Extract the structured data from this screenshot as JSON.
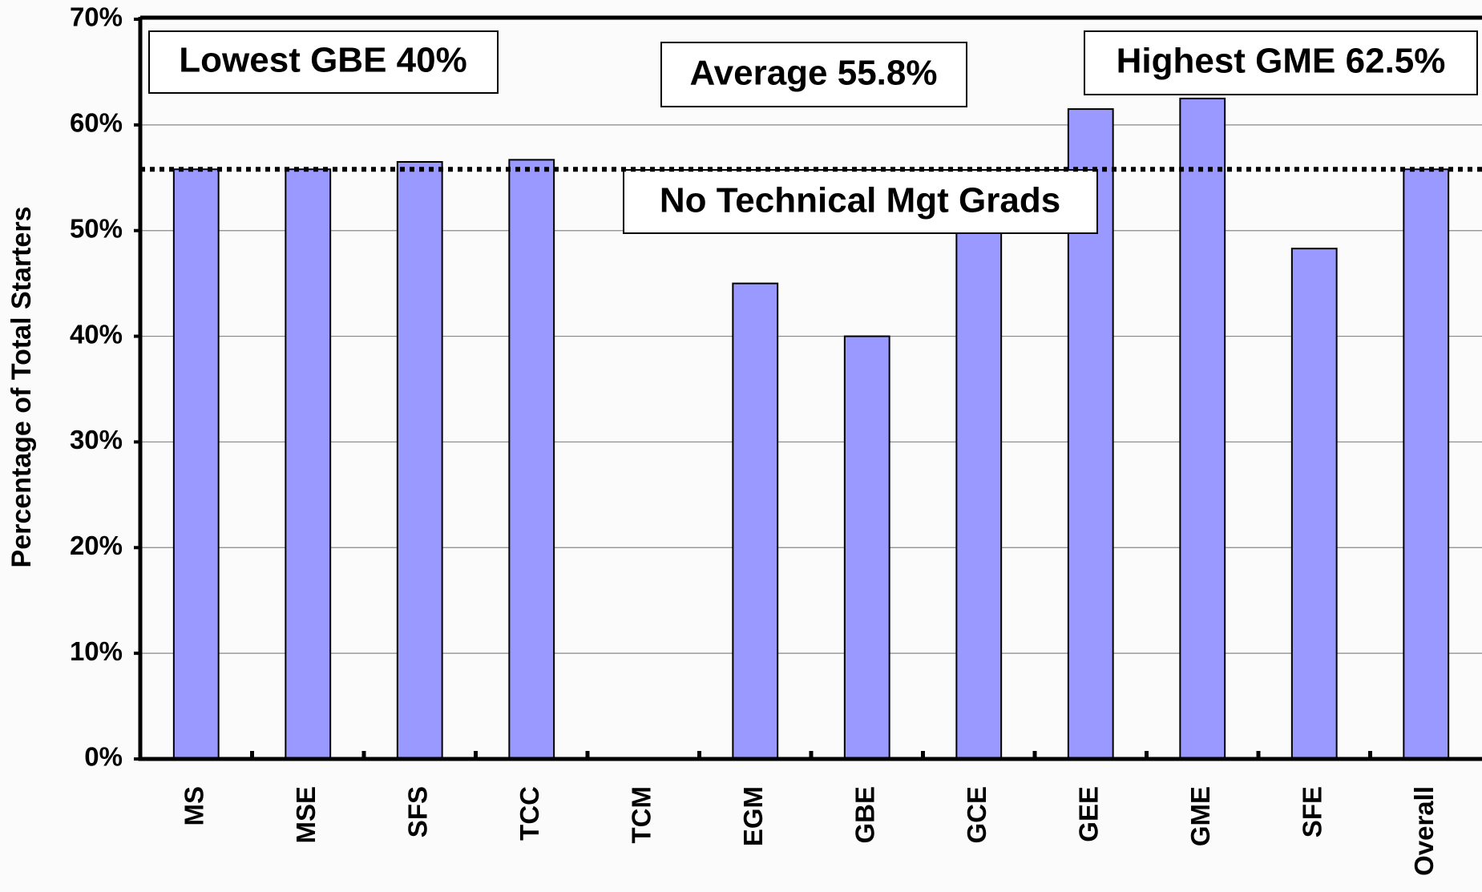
{
  "chart_data": {
    "type": "bar",
    "y_label": "Percentage of Total Starters",
    "categories": [
      "MS",
      "MSE",
      "SFS",
      "TCC",
      "TCM",
      "EGM",
      "GBE",
      "GCE",
      "GEE",
      "GME",
      "SFE",
      "Overall"
    ],
    "values": [
      55.8,
      55.8,
      56.5,
      56.7,
      null,
      45,
      40,
      50,
      61.5,
      62.5,
      48.3,
      55.8
    ],
    "color": "#9999ff",
    "ylim": [
      0,
      70
    ],
    "yticks": [
      {
        "value": 0,
        "label": "0%"
      },
      {
        "value": 10,
        "label": "10%"
      },
      {
        "value": 20,
        "label": "20%"
      },
      {
        "value": 30,
        "label": "30%"
      },
      {
        "value": 40,
        "label": "40%"
      },
      {
        "value": 50,
        "label": "50%"
      },
      {
        "value": 60,
        "label": "60%"
      },
      {
        "value": 70,
        "label": "70%"
      }
    ],
    "grid": true,
    "average_line": 55.8,
    "annotations": [
      "Lowest GBE 40%",
      "Average 55.8%",
      "Highest GME 62.5%",
      "No Technical Mgt Grads"
    ]
  }
}
